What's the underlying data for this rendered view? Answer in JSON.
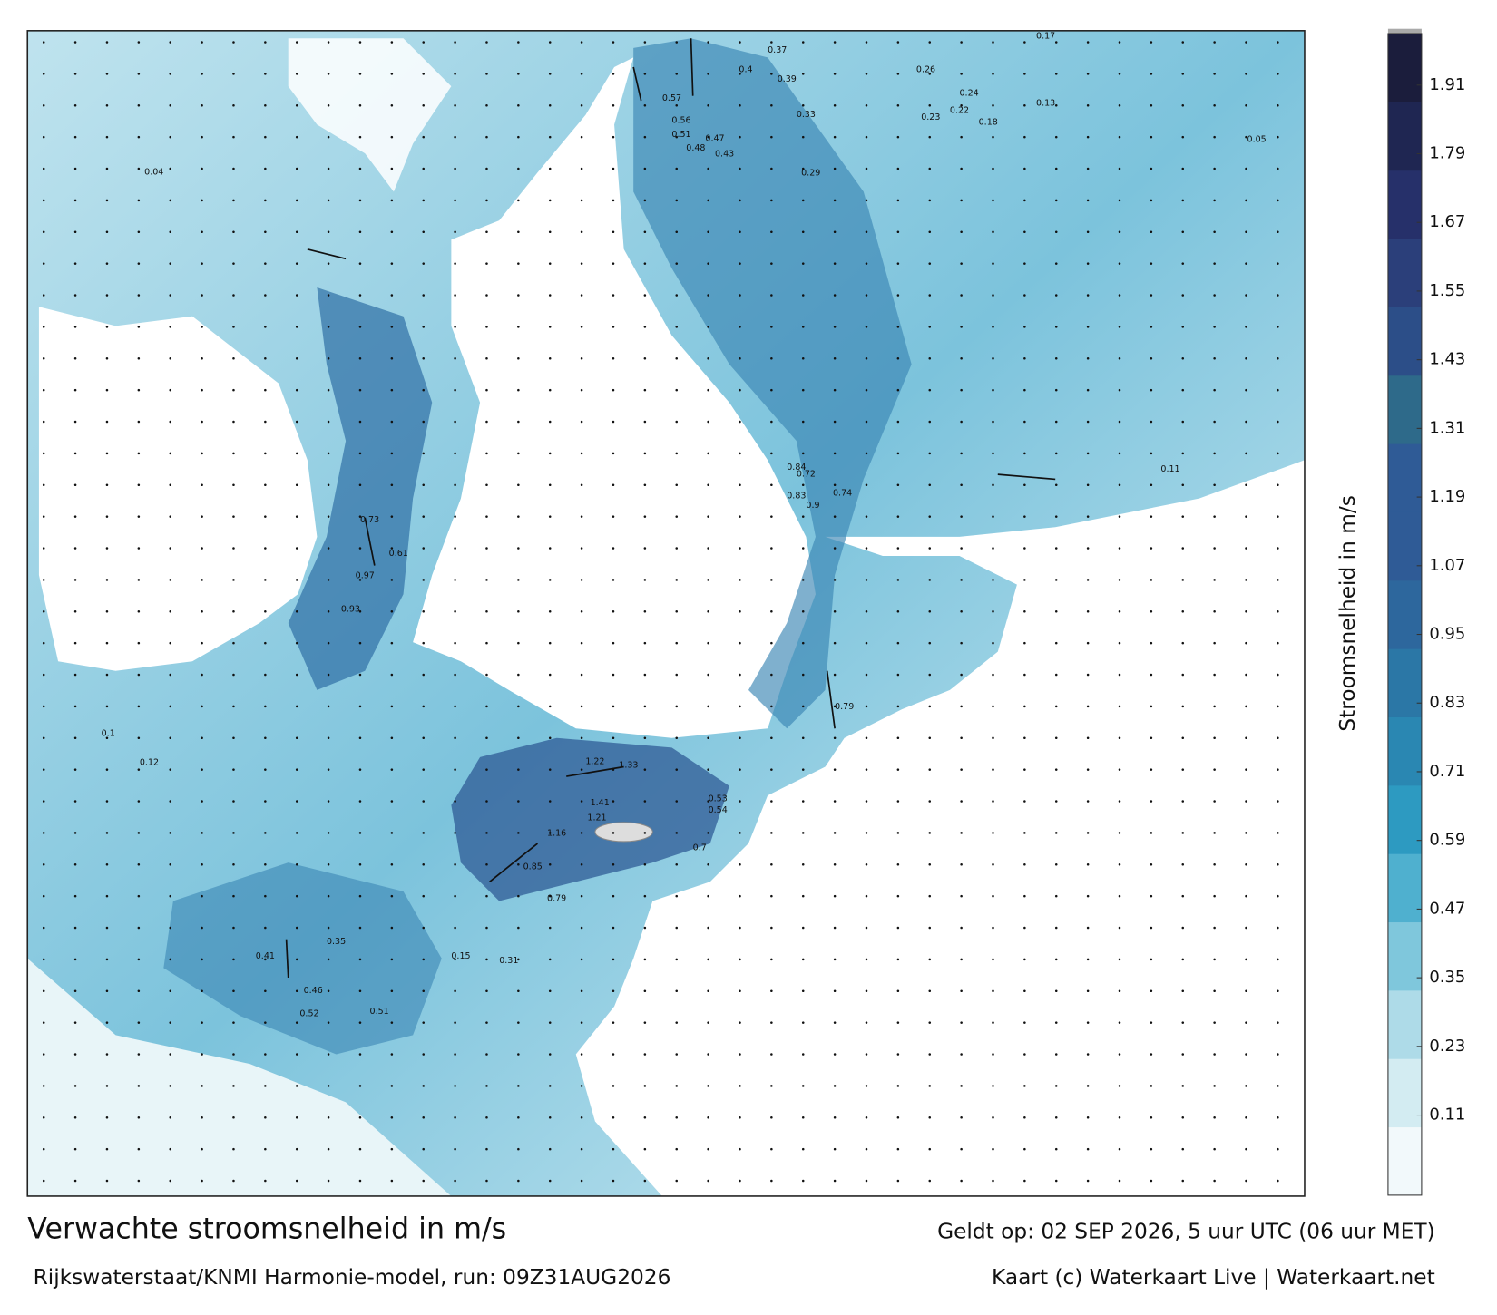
{
  "header": {
    "title": "Verwachte stroomsnelheid in m/s",
    "subtitle": "Rijkswaterstaat/KNMI Harmonie-model, run: 09Z31AUG2026",
    "valid": "Geldt op: 02 SEP 2026, 5 uur UTC (06 uur MET)",
    "credit": "Kaart (c) Waterkaart Live | Waterkaart.net"
  },
  "colorbar": {
    "label": "Stroomsnelheid in m/s",
    "clim": [
      -0.03,
      2.0
    ],
    "ticks": [
      0.11,
      0.23,
      0.35,
      0.47,
      0.59,
      0.71,
      0.83,
      0.95,
      1.07,
      1.19,
      1.31,
      1.43,
      1.55,
      1.67,
      1.79,
      1.91
    ],
    "colors": [
      "#f2f9fb",
      "#d3ecf2",
      "#aedbe8",
      "#7fc7dc",
      "#4fb0cf",
      "#2d9ac1",
      "#2a87b2",
      "#2b77a6",
      "#2d679d",
      "#2f5b96",
      "#2f5b96",
      "#2e6a8a",
      "#2c4e88",
      "#2b3f7a",
      "#26306a",
      "#1f2652",
      "#1b1d3c"
    ]
  },
  "map_labels": [
    0.57,
    0.56,
    0.51,
    0.48,
    0.47,
    0.43,
    0.4,
    0.37,
    0.39,
    0.33,
    0.29,
    0.23,
    0.24,
    0.22,
    0.18,
    0.26,
    0.17,
    0.13,
    0.84,
    0.83,
    0.74,
    0.72,
    0.9,
    0.79,
    0.93,
    0.97,
    0.73,
    0.61,
    1.22,
    1.33,
    1.41,
    1.21,
    1.16,
    0.85,
    0.79,
    0.53,
    0.54,
    0.7,
    0.31,
    0.35,
    0.41,
    0.46,
    0.52,
    0.51,
    0.11,
    0.05,
    0.04,
    0.1,
    0.12,
    0.15
  ]
}
